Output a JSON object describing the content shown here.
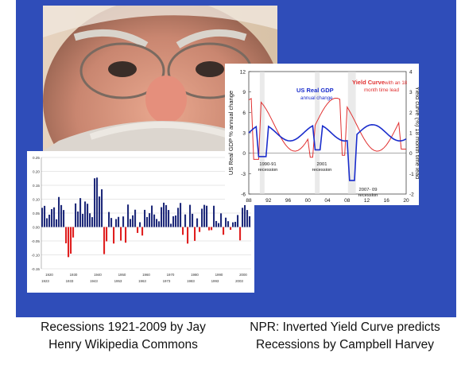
{
  "photo": {
    "subject": "close-up face photo"
  },
  "chart_data": [
    {
      "type": "bar",
      "title": "",
      "xlabel": "",
      "ylabel": "",
      "ylim": [
        -0.15,
        0.25
      ],
      "y_ticks": [
        "0.25",
        "0.20",
        "0.15",
        "0.10",
        "0.05",
        "0.00",
        "-0.05",
        "-0.10",
        "-0.15"
      ],
      "x_ticks": [
        "1920",
        "1930",
        "1940",
        "1950",
        "1960",
        "1970",
        "1980",
        "1990",
        "2000"
      ],
      "x_ticks_bottom": [
        "1923",
        "1933",
        "1943",
        "1953",
        "1963",
        "1973",
        "1983",
        "1993",
        "2003"
      ],
      "colors": {
        "positive": "#1f2a7a",
        "negative": "#e02020",
        "grid": "#cfcfcf"
      }
    },
    {
      "type": "line",
      "xlim": [
        88,
        20
      ],
      "x_ticks": [
        "88",
        "92",
        "96",
        "00",
        "04",
        "08",
        "12",
        "16",
        "20"
      ],
      "y_left_ticks": [
        "12",
        "9",
        "6",
        "3",
        "0",
        "-3",
        "-6"
      ],
      "y_right_ticks": [
        "4",
        "3",
        "2",
        "1",
        "0",
        "-1",
        "-2"
      ],
      "ylabel_left": "US Real GDP % annual change",
      "ylabel_right": "Yield curve (%) 18 month time lead",
      "series": [
        {
          "name": "US Real GDP",
          "note": "annual change",
          "color": "#1a2dcc"
        },
        {
          "name": "Yield Curve",
          "note_line1": "with an 18",
          "note_line2": "month time lead",
          "color": "#e03030"
        }
      ],
      "annotations": [
        {
          "line1": "1990-91",
          "line2": "recession"
        },
        {
          "line1": "2001",
          "line2": "recession"
        },
        {
          "line1": "2007- 09",
          "line2": "recession"
        }
      ]
    }
  ],
  "captions": {
    "left_line1": "Recessions 1921-2009 by Jay",
    "left_line2": "Henry Wikipedia Commons",
    "right_line1": "NPR: Inverted Yield Curve predicts",
    "right_line2": "Recessions by Campbell Harvey"
  }
}
